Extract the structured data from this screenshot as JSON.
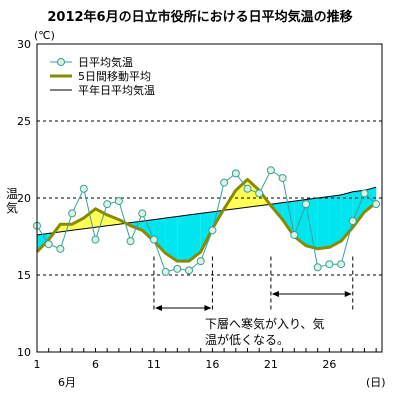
{
  "chart_data": {
    "type": "line",
    "title": "2012年6月の日立市役所における日平均気温の推移",
    "ylabel": "気温",
    "y_unit": "(℃)",
    "x_unit": "(日)",
    "x_month_label": "6月",
    "xlim": [
      1,
      30
    ],
    "ylim": [
      10,
      30
    ],
    "x_ticks": [
      1,
      6,
      11,
      16,
      21,
      26
    ],
    "y_ticks": [
      10,
      15,
      20,
      25,
      30
    ],
    "grid": "dashed horizontal at 15, 20, 25",
    "legend_position": "top-left",
    "x": [
      1,
      2,
      3,
      4,
      5,
      6,
      7,
      8,
      9,
      10,
      11,
      12,
      13,
      14,
      15,
      16,
      17,
      18,
      19,
      20,
      21,
      22,
      23,
      24,
      25,
      26,
      27,
      28,
      29,
      30
    ],
    "series": [
      {
        "name": "日平均気温",
        "kind": "daily",
        "color": "#3a9f9f",
        "marker_fill": "#ddf3dd",
        "values": [
          18.2,
          17.0,
          16.7,
          19.0,
          20.6,
          17.3,
          19.6,
          19.8,
          17.2,
          19.0,
          17.3,
          15.2,
          15.4,
          15.3,
          15.9,
          17.9,
          21.0,
          21.6,
          20.6,
          20.3,
          21.8,
          21.3,
          17.6,
          19.6,
          15.5,
          15.7,
          15.7,
          18.5,
          20.3,
          19.6
        ]
      },
      {
        "name": "5日間移動平均",
        "kind": "moving_average",
        "color": "#8a8a00",
        "values": [
          16.5,
          17.3,
          18.3,
          18.3,
          18.7,
          19.3,
          18.9,
          18.6,
          18.2,
          17.9,
          17.2,
          16.4,
          15.9,
          15.9,
          16.5,
          18.0,
          19.3,
          20.5,
          21.2,
          20.5,
          19.5,
          18.6,
          17.5,
          16.9,
          16.7,
          16.8,
          17.2,
          18.1,
          19.1,
          19.7
        ]
      },
      {
        "name": "平年日平均気温",
        "kind": "normal",
        "color": "#000000",
        "values": [
          17.6,
          17.7,
          17.8,
          17.9,
          18.0,
          18.1,
          18.2,
          18.3,
          18.4,
          18.5,
          18.6,
          18.7,
          18.8,
          18.9,
          19.0,
          19.1,
          19.2,
          19.3,
          19.4,
          19.5,
          19.6,
          19.7,
          19.8,
          19.9,
          20.0,
          20.1,
          20.2,
          20.4,
          20.5,
          20.7
        ]
      }
    ],
    "fill_colors": {
      "below_normal": "#00e5ee",
      "above_normal": "#ffff55"
    },
    "annotation": {
      "lines": [
        "下層へ寒気が入り、気",
        "温が低くなる。"
      ],
      "periods": [
        [
          11,
          16
        ],
        [
          21,
          28
        ]
      ]
    }
  }
}
